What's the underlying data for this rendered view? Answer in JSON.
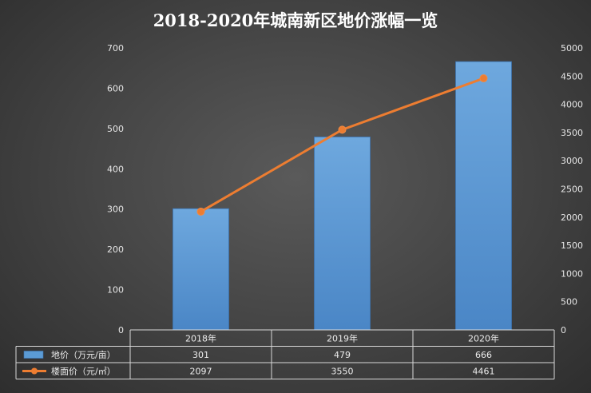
{
  "chart_data": {
    "type": "bar+line",
    "title": "2018-2020年城南新区地价涨幅一览",
    "categories": [
      "2018年",
      "2019年",
      "2020年"
    ],
    "series": [
      {
        "name": "地价（万元/亩）",
        "type": "bar",
        "axis": "left",
        "values": [
          301,
          479,
          666
        ],
        "color": "#5b9bd5"
      },
      {
        "name": "楼面价（元/㎡）",
        "type": "line",
        "axis": "right",
        "values": [
          2097,
          3550,
          4461
        ],
        "color": "#ed7d31"
      }
    ],
    "y_left": {
      "min": 0,
      "max": 700,
      "step": 100,
      "ticks": [
        "0",
        "100",
        "200",
        "300",
        "400",
        "500",
        "600",
        "700"
      ]
    },
    "y_right": {
      "min": 0,
      "max": 5000,
      "step": 500,
      "ticks": [
        "0",
        "500",
        "1000",
        "1500",
        "2000",
        "2500",
        "3000",
        "3500",
        "4000",
        "4500",
        "5000"
      ]
    },
    "data_table": {
      "rows": [
        [
          "301",
          "479",
          "666"
        ],
        [
          "2097",
          "3550",
          "4461"
        ]
      ]
    },
    "grid": false
  }
}
